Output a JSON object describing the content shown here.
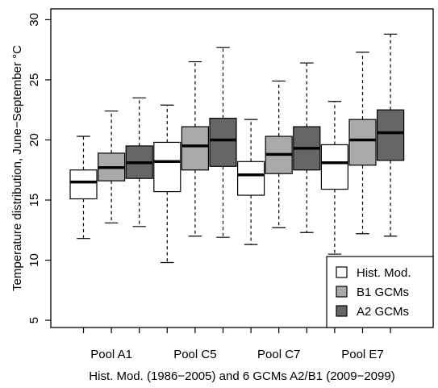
{
  "chart_data": {
    "type": "box",
    "title": "",
    "xlabel": "Hist. Mod. (1986−2005) and 6 GCMs A2/B1 (2009−2099)",
    "ylabel": "Temperature distribution, June−September °C",
    "ylim": [
      4.4,
      30.9
    ],
    "yticks": [
      5,
      10,
      15,
      20,
      25,
      30
    ],
    "categories": [
      "Pool A1",
      "Pool C5",
      "Pool C7",
      "Pool E7"
    ],
    "grid": false,
    "legend": "bottom-right",
    "series": [
      {
        "name": "Hist. Mod.",
        "color": "#ffffff",
        "boxes": [
          {
            "min": 11.8,
            "q1": 15.1,
            "median": 16.5,
            "q3": 17.5,
            "max": 20.3
          },
          {
            "min": 9.8,
            "q1": 15.7,
            "median": 18.2,
            "q3": 19.8,
            "max": 22.9
          },
          {
            "min": 11.3,
            "q1": 15.4,
            "median": 17.1,
            "q3": 18.2,
            "max": 21.7
          },
          {
            "min": 10.5,
            "q1": 15.9,
            "median": 18.1,
            "q3": 19.6,
            "max": 23.2
          }
        ]
      },
      {
        "name": "B1 GCMs",
        "color": "#aaaaaa",
        "boxes": [
          {
            "min": 13.1,
            "q1": 16.6,
            "median": 17.7,
            "q3": 18.9,
            "max": 22.4
          },
          {
            "min": 12.0,
            "q1": 17.5,
            "median": 19.5,
            "q3": 21.1,
            "max": 26.5
          },
          {
            "min": 12.7,
            "q1": 17.2,
            "median": 18.8,
            "q3": 20.3,
            "max": 24.9
          },
          {
            "min": 12.2,
            "q1": 17.9,
            "median": 20.0,
            "q3": 21.7,
            "max": 27.3
          }
        ]
      },
      {
        "name": "A2 GCMs",
        "color": "#666666",
        "boxes": [
          {
            "min": 12.8,
            "q1": 16.8,
            "median": 18.1,
            "q3": 19.5,
            "max": 23.5
          },
          {
            "min": 11.9,
            "q1": 17.8,
            "median": 20.0,
            "q3": 21.8,
            "max": 27.7
          },
          {
            "min": 12.3,
            "q1": 17.5,
            "median": 19.3,
            "q3": 21.1,
            "max": 26.4
          },
          {
            "min": 12.0,
            "q1": 18.3,
            "median": 20.6,
            "q3": 22.5,
            "max": 28.8
          }
        ]
      }
    ]
  }
}
